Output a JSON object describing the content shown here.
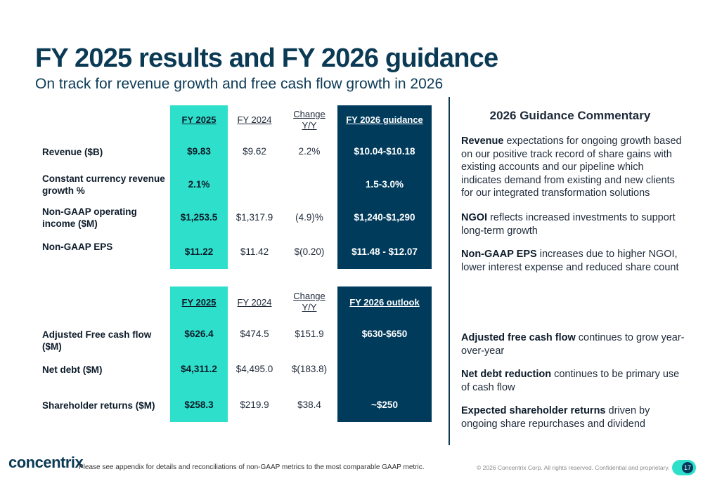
{
  "header": {
    "title": "FY 2025 results and FY 2026 guidance",
    "subtitle": "On track for revenue growth and free cash flow growth in 2026"
  },
  "table1": {
    "headers": {
      "fy2025": "FY 2025",
      "fy2024": "FY 2024",
      "change": "Change Y/Y",
      "guidance": "FY 2026 guidance"
    },
    "rows": [
      {
        "label": "Revenue ($B)",
        "fy2025": "$9.83",
        "fy2024": "$9.62",
        "change": "2.2%",
        "guidance": "$10.04-$10.18"
      },
      {
        "label": "Constant currency revenue growth %",
        "fy2025": "2.1%",
        "fy2024": "",
        "change": "",
        "guidance": "1.5-3.0%"
      },
      {
        "label": "Non-GAAP operating income ($M)",
        "fy2025": "$1,253.5",
        "fy2024": "$1,317.9",
        "change": "(4.9)%",
        "guidance": "$1,240-$1,290"
      },
      {
        "label": "Non-GAAP EPS",
        "fy2025": "$11.22",
        "fy2024": "$11.42",
        "change": "$(0.20)",
        "guidance": "$11.48 - $12.07"
      }
    ]
  },
  "table2": {
    "headers": {
      "fy2025": "FY 2025",
      "fy2024": "FY 2024",
      "change": "Change Y/Y",
      "outlook": "FY 2026 outlook"
    },
    "rows": [
      {
        "label": "Adjusted Free cash flow ($M)",
        "fy2025": "$626.4",
        "fy2024": "$474.5",
        "change": "$151.9",
        "outlook": "$630-$650"
      },
      {
        "label": "Net debt ($M)",
        "fy2025": "$4,311.2",
        "fy2024": "$4,495.0",
        "change": "$(183.8)",
        "outlook": ""
      },
      {
        "label": "Shareholder returns ($M)",
        "fy2025": "$258.3",
        "fy2024": "$219.9",
        "change": "$38.4",
        "outlook": "~$250"
      }
    ]
  },
  "commentary": {
    "title": "2026 Guidance Commentary",
    "items": [
      {
        "bold": "Revenue",
        "text": " expectations for ongoing growth based on our positive track record of share gains with existing accounts and our pipeline which indicates demand from existing and new clients for our integrated transformation solutions"
      },
      {
        "bold": "NGOI",
        "text": " reflects increased investments to support long-term growth"
      },
      {
        "bold": "Non-GAAP EPS",
        "text": " increases due to higher NGOI, lower interest expense and reduced share count"
      },
      {
        "bold": "Adjusted free cash flow",
        "text": " continues to grow year-over-year"
      },
      {
        "bold": "Net debt reduction",
        "text": " continues to be primary use of cash flow"
      },
      {
        "bold": "Expected shareholder returns",
        "text": " driven by ongoing share repurchases and dividend"
      }
    ]
  },
  "footer": {
    "logo": "concentrix",
    "note": "Please see appendix for details and reconciliations of non-GAAP metrics to the most comparable GAAP metric.",
    "copyright": "© 2026 Concentrix Corp. All rights reserved. Confidential and proprietary.",
    "page": "17"
  },
  "colors": {
    "teal": "#2ee0cb",
    "navy": "#003b5c",
    "title": "#0b3a55"
  }
}
